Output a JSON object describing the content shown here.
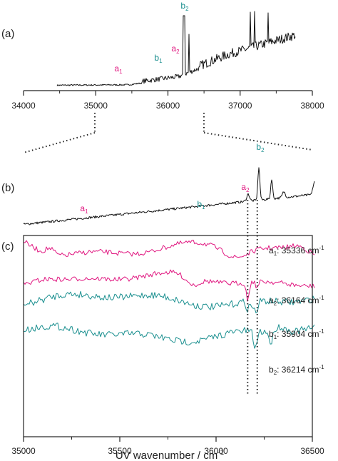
{
  "colors": {
    "black": "#111111",
    "magenta": "#e0157f",
    "teal": "#1a8f8f"
  },
  "panels": {
    "a": "(a)",
    "b": "(b)",
    "c": "(c)"
  },
  "chart_data": [
    {
      "panel": "(a)",
      "type": "line",
      "xlim": [
        34000,
        38000
      ],
      "x_ticks": [
        "34000",
        "35000",
        "36000",
        "37000",
        "38000"
      ],
      "y_ticks": [],
      "peak_labels": [
        {
          "base": "a",
          "sub": "1",
          "color": "magenta",
          "x": 35300
        },
        {
          "base": "b",
          "sub": "1",
          "color": "teal",
          "x": 35880
        },
        {
          "base": "a",
          "sub": "2",
          "color": "magenta",
          "x": 36100
        },
        {
          "base": "b",
          "sub": "2",
          "color": "teal",
          "x": 36214
        }
      ]
    },
    {
      "panel": "(b)",
      "type": "line",
      "xlim": [
        35000,
        36500
      ],
      "peak_labels": [
        {
          "base": "a",
          "sub": "1",
          "color": "magenta",
          "x": 35336
        },
        {
          "base": "b",
          "sub": "1",
          "color": "teal",
          "x": 35904
        },
        {
          "base": "a",
          "sub": "2",
          "color": "magenta",
          "x": 36164
        },
        {
          "base": "b",
          "sub": "2",
          "color": "teal",
          "x": 36214
        }
      ]
    },
    {
      "panel": "(c)",
      "type": "line",
      "xlim": [
        35000,
        36500
      ],
      "x_ticks": [
        "35000",
        "35500",
        "36000",
        "36500"
      ],
      "xlabel": "UV wavenumber / cm",
      "xlabel_sup": "-1",
      "guide_lines_x": [
        36164,
        36214
      ],
      "series": [
        {
          "base": "a",
          "sub": "1",
          "label": ": 35336 cm",
          "sup": "-1",
          "color": "magenta"
        },
        {
          "base": "a",
          "sub": "2",
          "label": ": 36164 cm",
          "sup": "-1",
          "color": "magenta"
        },
        {
          "base": "b",
          "sub": "1",
          "label": ": 35904 cm",
          "sup": "-1",
          "color": "teal"
        },
        {
          "base": "b",
          "sub": "2",
          "label": ": 36214 cm",
          "sup": "-1",
          "color": "teal"
        }
      ]
    }
  ]
}
